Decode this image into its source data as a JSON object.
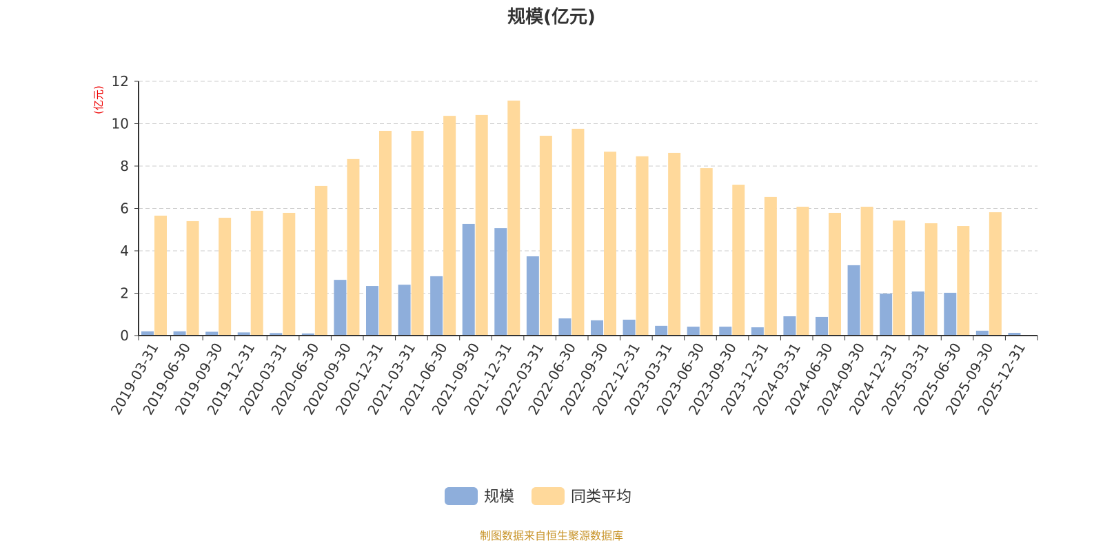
{
  "chart_data": {
    "type": "bar",
    "title": "规模(亿元)",
    "ylabel": "(亿元)",
    "xlabel": "",
    "ylim": [
      0,
      12
    ],
    "yticks": [
      0,
      2,
      4,
      6,
      8,
      10,
      12
    ],
    "grid": true,
    "legend_position": "bottom",
    "categories": [
      "2019-03-31",
      "2019-06-30",
      "2019-09-30",
      "2019-12-31",
      "2020-03-31",
      "2020-06-30",
      "2020-09-30",
      "2020-12-31",
      "2021-03-31",
      "2021-06-30",
      "2021-09-30",
      "2021-12-31",
      "2022-03-31",
      "2022-06-30",
      "2022-09-30",
      "2022-12-31",
      "2023-03-31",
      "2023-06-30",
      "2023-09-30",
      "2023-12-31",
      "2024-03-31",
      "2024-06-30",
      "2024-09-30",
      "2024-12-31",
      "2025-03-31",
      "2025-06-30",
      "2025-09-30",
      "2025-12-31"
    ],
    "series": [
      {
        "name": "规模",
        "color": "#8eaedb",
        "values": [
          0.2,
          0.2,
          0.18,
          0.15,
          0.12,
          0.1,
          2.63,
          2.34,
          2.4,
          2.8,
          5.27,
          5.07,
          3.74,
          0.81,
          0.72,
          0.75,
          0.46,
          0.42,
          0.42,
          0.39,
          0.91,
          0.88,
          3.32,
          1.98,
          2.08,
          2.02,
          0.23,
          0.13
        ]
      },
      {
        "name": "同类平均",
        "color": "#ffd99b",
        "values": [
          5.66,
          5.4,
          5.56,
          5.89,
          5.79,
          7.06,
          8.33,
          9.66,
          9.66,
          10.37,
          10.41,
          11.09,
          9.43,
          9.76,
          8.68,
          8.46,
          8.62,
          7.9,
          7.12,
          6.54,
          6.08,
          5.79,
          6.08,
          5.43,
          5.3,
          5.17,
          5.82,
          null
        ]
      }
    ]
  },
  "footer": "制图数据来自恒生聚源数据库"
}
